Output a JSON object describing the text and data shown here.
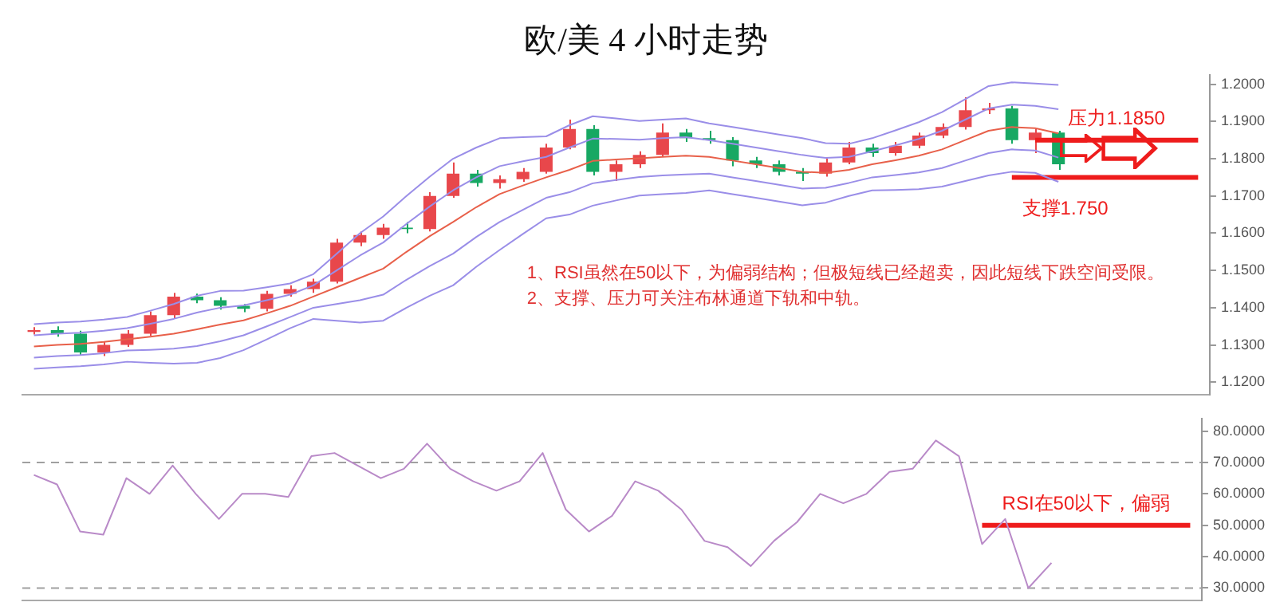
{
  "chart_data": [
    {
      "type": "candlestick",
      "title": "欧/美 4 小时走势",
      "categories": [
        null,
        null,
        null,
        null,
        null,
        null,
        null,
        null,
        null,
        null,
        null,
        null,
        null,
        null,
        null,
        null,
        null,
        null,
        null,
        null,
        null,
        null,
        null,
        null,
        null,
        null,
        null,
        null,
        null,
        null,
        null,
        null,
        null,
        null,
        null,
        null,
        null,
        null,
        null,
        null,
        null,
        null,
        null,
        null,
        null,
        null,
        null,
        null,
        null,
        null,
        null
      ],
      "ohlc": [
        [
          1.1335,
          1.1348,
          1.1328,
          1.134
        ],
        [
          1.134,
          1.135,
          1.1322,
          1.133
        ],
        [
          1.133,
          1.1338,
          1.1272,
          1.128
        ],
        [
          1.128,
          1.1308,
          1.127,
          1.13
        ],
        [
          1.13,
          1.134,
          1.1295,
          1.133
        ],
        [
          1.133,
          1.139,
          1.1325,
          1.138
        ],
        [
          1.138,
          1.144,
          1.1372,
          1.143
        ],
        [
          1.143,
          1.1438,
          1.1412,
          1.142
        ],
        [
          1.142,
          1.1428,
          1.1395,
          1.1405
        ],
        [
          1.1405,
          1.141,
          1.1388,
          1.1397
        ],
        [
          1.1397,
          1.1445,
          1.139,
          1.1437
        ],
        [
          1.1437,
          1.146,
          1.143,
          1.145
        ],
        [
          1.145,
          1.1478,
          1.144,
          1.147
        ],
        [
          1.147,
          1.1585,
          1.1465,
          1.1575
        ],
        [
          1.1575,
          1.1605,
          1.1565,
          1.1595
        ],
        [
          1.1595,
          1.1625,
          1.1585,
          1.1615
        ],
        [
          1.1615,
          1.163,
          1.16,
          1.1611
        ],
        [
          1.1611,
          1.171,
          1.1605,
          1.17
        ],
        [
          1.17,
          1.179,
          1.1695,
          1.176
        ],
        [
          1.176,
          1.177,
          1.1725,
          1.1735
        ],
        [
          1.1735,
          1.1755,
          1.172,
          1.1745
        ],
        [
          1.1745,
          1.1775,
          1.1738,
          1.1765
        ],
        [
          1.1765,
          1.184,
          1.176,
          1.183
        ],
        [
          1.183,
          1.1905,
          1.1825,
          1.188
        ],
        [
          1.188,
          1.189,
          1.1755,
          1.1765
        ],
        [
          1.1765,
          1.1795,
          1.174,
          1.1785
        ],
        [
          1.1785,
          1.182,
          1.1775,
          1.181
        ],
        [
          1.181,
          1.1895,
          1.1805,
          1.187
        ],
        [
          1.187,
          1.188,
          1.1845,
          1.1855
        ],
        [
          1.1855,
          1.1875,
          1.184,
          1.185
        ],
        [
          1.185,
          1.1858,
          1.178,
          1.1795
        ],
        [
          1.1795,
          1.1805,
          1.1775,
          1.1785
        ],
        [
          1.1785,
          1.1795,
          1.1755,
          1.1765
        ],
        [
          1.1765,
          1.1775,
          1.174,
          1.176
        ],
        [
          1.176,
          1.18,
          1.1752,
          1.179
        ],
        [
          1.179,
          1.1845,
          1.1785,
          1.183
        ],
        [
          1.183,
          1.184,
          1.1805,
          1.1815
        ],
        [
          1.1815,
          1.1845,
          1.1808,
          1.1835
        ],
        [
          1.1835,
          1.187,
          1.1828,
          1.1862
        ],
        [
          1.1862,
          1.1895,
          1.1855,
          1.1885
        ],
        [
          1.1885,
          1.1965,
          1.1878,
          1.193
        ],
        [
          1.193,
          1.195,
          1.192,
          1.1935
        ],
        [
          1.1935,
          1.1942,
          1.184,
          1.185
        ],
        [
          1.185,
          1.188,
          1.1815,
          1.187
        ],
        [
          1.187,
          1.1875,
          1.177,
          1.1785
        ],
        null,
        null,
        null,
        null,
        null,
        null
      ],
      "colors": [
        "#e8474b",
        "#17a863",
        "#17a863",
        "#e8474b",
        "#e8474b",
        "#e8474b",
        "#e8474b",
        "#17a863",
        "#17a863",
        "#17a863",
        "#e8474b",
        "#e8474b",
        "#e8474b",
        "#e8474b",
        "#e8474b",
        "#e8474b",
        "#17a863",
        "#e8474b",
        "#e8474b",
        "#17a863",
        "#e8474b",
        "#e8474b",
        "#e8474b",
        "#e8474b",
        "#17a863",
        "#e8474b",
        "#e8474b",
        "#e8474b",
        "#17a863",
        "#17a863",
        "#17a863",
        "#17a863",
        "#17a863",
        "#17a863",
        "#e8474b",
        "#e8474b",
        "#17a863",
        "#e8474b",
        "#e8474b",
        "#e8474b",
        "#e8474b",
        "#e8474b",
        "#17a863",
        "#e8474b",
        "#17a863",
        null,
        null,
        null,
        null,
        null,
        null
      ],
      "series": [
        {
          "type": "line",
          "color": "#9a8ee8",
          "values": [
            1.1356,
            1.136,
            1.1363,
            1.1368,
            1.1375,
            1.1392,
            1.141,
            1.1432,
            1.1445,
            1.1446,
            1.1455,
            1.1465,
            1.149,
            1.1545,
            1.16,
            1.1645,
            1.17,
            1.1752,
            1.18,
            1.183,
            1.1855,
            1.1858,
            1.186,
            1.189,
            1.1914,
            1.1908,
            1.1901,
            1.1905,
            1.1908,
            1.1895,
            1.1885,
            1.1875,
            1.1865,
            1.1855,
            1.1842,
            1.184,
            1.1855,
            1.1876,
            1.1898,
            1.1925,
            1.196,
            1.1995,
            1.2005,
            1.2002,
            1.1998,
            null,
            null,
            null,
            null,
            null,
            null
          ]
        },
        {
          "type": "line",
          "color": "#9a8ee8",
          "values": [
            1.1326,
            1.133,
            1.1333,
            1.1338,
            1.1345,
            1.1357,
            1.137,
            1.1387,
            1.14,
            1.1406,
            1.142,
            1.1435,
            1.146,
            1.15,
            1.154,
            1.1575,
            1.1625,
            1.1672,
            1.1715,
            1.175,
            1.178,
            1.1793,
            1.1805,
            1.183,
            1.1854,
            1.1853,
            1.1851,
            1.1855,
            1.1858,
            1.185,
            1.184,
            1.183,
            1.182,
            1.181,
            1.1802,
            1.1805,
            1.182,
            1.1836,
            1.1853,
            1.1875,
            1.1905,
            1.1935,
            1.1945,
            1.1942,
            1.1933,
            null,
            null,
            null,
            null,
            null,
            null
          ]
        },
        {
          "type": "line",
          "color": "#e8604a",
          "values": [
            1.1296,
            1.13,
            1.1303,
            1.1308,
            1.1315,
            1.1322,
            1.133,
            1.1342,
            1.1355,
            1.1366,
            1.1385,
            1.1405,
            1.143,
            1.1455,
            1.148,
            1.1505,
            1.155,
            1.1592,
            1.163,
            1.167,
            1.1705,
            1.1728,
            1.175,
            1.177,
            1.1794,
            1.1798,
            1.1801,
            1.1805,
            1.1808,
            1.1805,
            1.1795,
            1.1785,
            1.1775,
            1.1765,
            1.1762,
            1.177,
            1.1785,
            1.1796,
            1.1808,
            1.1825,
            1.185,
            1.1875,
            1.1885,
            1.1882,
            1.1868,
            null,
            null,
            null,
            null,
            null,
            null
          ]
        },
        {
          "type": "line",
          "color": "#9a8ee8",
          "values": [
            1.1266,
            1.127,
            1.1273,
            1.1278,
            1.1285,
            1.1287,
            1.129,
            1.1297,
            1.131,
            1.1326,
            1.135,
            1.1375,
            1.14,
            1.141,
            1.142,
            1.1435,
            1.1475,
            1.1512,
            1.1545,
            1.159,
            1.163,
            1.1663,
            1.1695,
            1.171,
            1.1734,
            1.1743,
            1.1751,
            1.1755,
            1.1758,
            1.176,
            1.175,
            1.174,
            1.173,
            1.172,
            1.1722,
            1.1735,
            1.175,
            1.1756,
            1.1763,
            1.1775,
            1.1795,
            1.1815,
            1.1825,
            1.1822,
            1.1803,
            null,
            null,
            null,
            null,
            null,
            null
          ]
        },
        {
          "type": "line",
          "color": "#9a8ee8",
          "values": [
            1.1236,
            1.124,
            1.1243,
            1.1248,
            1.1255,
            1.1252,
            1.125,
            1.1252,
            1.1265,
            1.1286,
            1.1315,
            1.1345,
            1.137,
            1.1365,
            1.136,
            1.1365,
            1.14,
            1.1432,
            1.146,
            1.151,
            1.1555,
            1.1598,
            1.164,
            1.165,
            1.1674,
            1.1688,
            1.1701,
            1.1705,
            1.1708,
            1.1715,
            1.1705,
            1.1695,
            1.1685,
            1.1675,
            1.1682,
            1.17,
            1.1715,
            1.1716,
            1.1718,
            1.1725,
            1.174,
            1.1755,
            1.1765,
            1.1762,
            1.1738,
            null,
            null,
            null,
            null,
            null,
            null
          ]
        },
        {
          "type": "line",
          "name": "压力1.1850",
          "color": "#ee1c1c",
          "values": [
            null,
            null,
            null,
            null,
            null,
            null,
            null,
            null,
            null,
            null,
            null,
            null,
            null,
            null,
            null,
            null,
            null,
            null,
            null,
            null,
            null,
            null,
            null,
            null,
            null,
            null,
            null,
            null,
            null,
            null,
            null,
            null,
            null,
            null,
            null,
            null,
            null,
            null,
            null,
            null,
            null,
            null,
            null,
            1.185,
            1.185,
            1.185,
            1.185,
            1.185,
            1.185,
            1.185,
            1.185
          ]
        },
        {
          "type": "line",
          "name": "支撑1.750",
          "color": "#ee1c1c",
          "values": [
            null,
            null,
            null,
            null,
            null,
            null,
            null,
            null,
            null,
            null,
            null,
            null,
            null,
            null,
            null,
            null,
            null,
            null,
            null,
            null,
            null,
            null,
            null,
            null,
            null,
            null,
            null,
            null,
            null,
            null,
            null,
            null,
            null,
            null,
            null,
            null,
            null,
            null,
            null,
            null,
            null,
            null,
            1.175,
            1.175,
            1.175,
            1.175,
            1.175,
            1.175,
            1.175,
            1.175,
            1.175
          ]
        }
      ],
      "ylim": [
        1.1166,
        1.2024
      ],
      "yticks": [
        {
          "value": 1.12,
          "label": "1.1200"
        },
        {
          "value": 1.13,
          "label": "1.1300"
        },
        {
          "value": 1.14,
          "label": "1.1400"
        },
        {
          "value": 1.15,
          "label": "1.1500"
        },
        {
          "value": 1.16,
          "label": "1.1600"
        },
        {
          "value": 1.17,
          "label": "1.1700"
        },
        {
          "value": 1.18,
          "label": "1.1800"
        },
        {
          "value": 1.19,
          "label": "1.1900"
        },
        {
          "value": 1.2,
          "label": "1.2000"
        }
      ],
      "annotations": [
        "1、RSI虽然在50以下，为偏弱结构；但极短线已经超卖，因此短线下跌空间受限。",
        "2、支撑、压力可关注布林通道下轨和中轨。"
      ],
      "tick_labels": "y",
      "grid": false,
      "legend": false,
      "marker": "none"
    },
    {
      "type": "line",
      "categories": [
        null,
        null,
        null,
        null,
        null,
        null,
        null,
        null,
        null,
        null,
        null,
        null,
        null,
        null,
        null,
        null,
        null,
        null,
        null,
        null,
        null,
        null,
        null,
        null,
        null,
        null,
        null,
        null,
        null,
        null,
        null,
        null,
        null,
        null,
        null,
        null,
        null,
        null,
        null,
        null,
        null,
        null,
        null,
        null,
        null,
        null,
        null,
        null,
        null,
        null,
        null
      ],
      "series": [
        {
          "type": "line",
          "color": "#b98ac8",
          "values": [
            66,
            63,
            48,
            47,
            65,
            60,
            69,
            60,
            52,
            60,
            60,
            59,
            72,
            73,
            69,
            65,
            68,
            76,
            68,
            64,
            61,
            64,
            73,
            55,
            48,
            53,
            64,
            61,
            55,
            45,
            43,
            37,
            45,
            51,
            60,
            57,
            60,
            67,
            68,
            77,
            72,
            44,
            52,
            30,
            38,
            null,
            null,
            null,
            null,
            null,
            null
          ]
        },
        {
          "type": "line",
          "name": "RSI在50以下，偏弱",
          "color": "#ee1c1c",
          "values": [
            null,
            null,
            null,
            null,
            null,
            null,
            null,
            null,
            null,
            null,
            null,
            null,
            null,
            null,
            null,
            null,
            null,
            null,
            null,
            null,
            null,
            null,
            null,
            null,
            null,
            null,
            null,
            null,
            null,
            null,
            null,
            null,
            null,
            null,
            null,
            null,
            null,
            null,
            null,
            null,
            null,
            50,
            50,
            50,
            50,
            50,
            50,
            50,
            50,
            50,
            50
          ]
        }
      ],
      "ylim": [
        26,
        84
      ],
      "yticks": [
        {
          "value": 30,
          "label": "30.0000"
        },
        {
          "value": 40,
          "label": "40.0000"
        },
        {
          "value": 50,
          "label": "50.0000"
        },
        {
          "value": 60,
          "label": "60.0000"
        },
        {
          "value": 70,
          "label": "70.0000"
        },
        {
          "value": 80,
          "label": "80.0000"
        }
      ],
      "ref_lines": [
        {
          "axis": "y",
          "value": 70,
          "color": "#a0a0a0",
          "line_style": "dashed"
        },
        {
          "axis": "y",
          "value": 30,
          "color": "#a0a0a0",
          "line_style": "dashed"
        }
      ],
      "tick_labels": "y",
      "grid": false,
      "legend": false,
      "marker": "none"
    }
  ]
}
